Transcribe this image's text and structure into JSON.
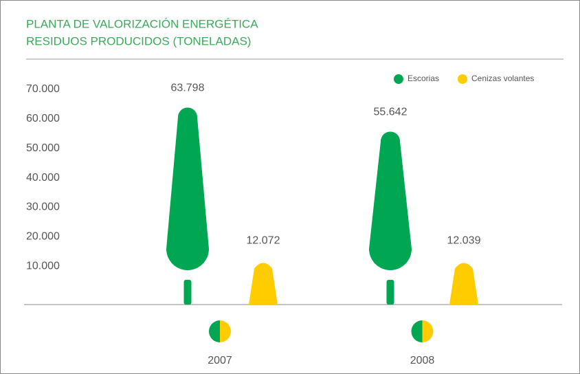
{
  "chart_data": {
    "type": "bar",
    "title": "PLANTA DE VALORIZACIÓN ENERGÉTICA",
    "subtitle": "RESIDUOS PRODUCIDOS (TONELADAS)",
    "categories": [
      "2007",
      "2008"
    ],
    "series": [
      {
        "name": "Escorias",
        "color": "#00a651",
        "values": [
          63798,
          55642
        ],
        "value_labels": [
          "63.798",
          "55.642"
        ]
      },
      {
        "name": "Cenizas volantes",
        "color": "#ffcc00",
        "values": [
          12072,
          12039
        ],
        "value_labels": [
          "12.072",
          "12.039"
        ]
      }
    ],
    "ylim": [
      -3000,
      73000
    ],
    "yticks": [
      {
        "value": 10000,
        "label": "10.000"
      },
      {
        "value": 20000,
        "label": "20.000"
      },
      {
        "value": 30000,
        "label": "30.000"
      },
      {
        "value": 40000,
        "label": "40.000"
      },
      {
        "value": 50000,
        "label": "50.000"
      },
      {
        "value": 60000,
        "label": "60.000"
      },
      {
        "value": 70000,
        "label": "70.000"
      }
    ],
    "legend": "upper right"
  }
}
